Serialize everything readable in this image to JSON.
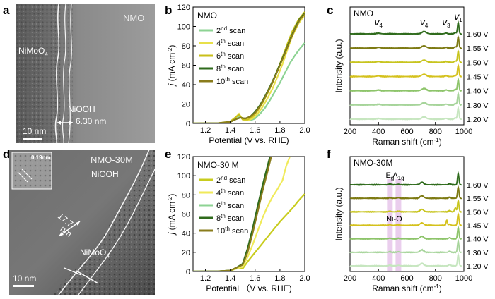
{
  "panel_letters": {
    "a": "a",
    "b": "b",
    "c": "c",
    "d": "d",
    "e": "e",
    "f": "f"
  },
  "panel_a": {
    "sample_label": "NMO",
    "phase_1": "NiMoO",
    "phase_1_sub": "4",
    "phase_2": "NiOOH",
    "thickness": "6.30 nm",
    "scale_bar": "10 nm"
  },
  "panel_d": {
    "sample_label": "NMO-30M",
    "inset_spacing": "0.19nm",
    "phase_1": "NiOOH",
    "phase_2": "NiMoO",
    "phase_2_sub": "4",
    "thickness_line1": "17.7",
    "thickness_line2": "nm",
    "scale_bar": "10 nm"
  },
  "chart_data": [
    {
      "id": "b",
      "type": "line",
      "title": "NMO",
      "xlabel": "Potential (V vs. RHE)",
      "ylabel_main": "j",
      "ylabel_unit": "(mA cm",
      "ylabel_sup": "-2",
      "ylabel_end": ")",
      "xlim": [
        1.1,
        2.0
      ],
      "ylim": [
        0,
        120
      ],
      "xticks": [
        "1.2",
        "1.4",
        "1.6",
        "1.8",
        "2.0"
      ],
      "xtick_values": [
        1.2,
        1.4,
        1.6,
        1.8,
        2.0
      ],
      "yticks": [
        "0",
        "20",
        "40",
        "60",
        "80",
        "100",
        "120"
      ],
      "ytick_values": [
        0,
        20,
        40,
        60,
        80,
        100,
        120
      ],
      "legend": "top-left",
      "series": [
        {
          "name": "2nd scan",
          "num": "2",
          "sup": "nd",
          "rest": " scan",
          "color": "#8dd393",
          "x": [
            1.1,
            1.3,
            1.4,
            1.44,
            1.48,
            1.52,
            1.56,
            1.6,
            1.64,
            1.68,
            1.72,
            1.76,
            1.8,
            1.84,
            1.88,
            1.92,
            1.96,
            2.0
          ],
          "y": [
            0,
            0.2,
            1.5,
            5,
            7,
            3,
            3,
            5,
            10,
            16,
            24,
            33,
            42,
            52,
            62,
            70,
            77,
            83
          ]
        },
        {
          "name": "4th scan",
          "num": "4",
          "sup": "th",
          "rest": " scan",
          "color": "#e8e04a",
          "x": [
            1.1,
            1.3,
            1.4,
            1.44,
            1.47,
            1.5,
            1.54,
            1.58,
            1.62,
            1.66,
            1.7,
            1.74,
            1.78,
            1.82,
            1.86,
            1.9,
            1.95,
            2.0
          ],
          "y": [
            0,
            0.2,
            2,
            6,
            10,
            4,
            3,
            5,
            10,
            17,
            26,
            36,
            48,
            61,
            76,
            90,
            103,
            112
          ]
        },
        {
          "name": "6th scan",
          "num": "6",
          "sup": "th",
          "rest": " scan",
          "color": "#c9bf1a",
          "x": [
            1.1,
            1.3,
            1.4,
            1.44,
            1.47,
            1.5,
            1.54,
            1.58,
            1.62,
            1.66,
            1.7,
            1.74,
            1.78,
            1.82,
            1.86,
            1.9,
            1.95,
            2.0
          ],
          "y": [
            0,
            0.2,
            2,
            6,
            9,
            4,
            4,
            7,
            13,
            21,
            31,
            42,
            55,
            68,
            82,
            95,
            107,
            115
          ]
        },
        {
          "name": "8th scan",
          "num": "8",
          "sup": "th",
          "rest": " scan",
          "color": "#2f6b1c",
          "x": [
            1.1,
            1.3,
            1.4,
            1.44,
            1.48,
            1.52,
            1.56,
            1.6,
            1.64,
            1.68,
            1.72,
            1.76,
            1.8,
            1.84,
            1.88,
            1.92,
            1.96,
            2.0
          ],
          "y": [
            0,
            0.2,
            1.5,
            4,
            6,
            5,
            7,
            12,
            19,
            28,
            38,
            49,
            61,
            73,
            86,
            98,
            108,
            114
          ]
        },
        {
          "name": "10th scan",
          "num": "10",
          "sup": "th",
          "rest": " scan",
          "color": "#8a7c1c",
          "x": [
            1.1,
            1.3,
            1.4,
            1.44,
            1.48,
            1.52,
            1.56,
            1.6,
            1.64,
            1.68,
            1.72,
            1.76,
            1.8,
            1.84,
            1.88,
            1.92,
            1.96,
            2.0
          ],
          "y": [
            0,
            0.2,
            1.5,
            4,
            6,
            5,
            7,
            11,
            18,
            27,
            37,
            48,
            60,
            72,
            85,
            97,
            107,
            113
          ]
        }
      ]
    },
    {
      "id": "c",
      "type": "line",
      "title": "NMO",
      "xlabel": "Raman shift (cm",
      "xlabel_sup": "-1",
      "xlabel_end": ")",
      "ylabel": "Intensity (a.u.)",
      "xlim": [
        200,
        1000
      ],
      "xticks": [
        "200",
        "400",
        "600",
        "800",
        "1000"
      ],
      "xtick_values": [
        200,
        400,
        600,
        800,
        1000
      ],
      "peak_labels": [
        {
          "sym": "v",
          "sub": "4",
          "x": 400
        },
        {
          "sym": "v",
          "sub": "4",
          "x": 720
        },
        {
          "sym": "v",
          "sub": "3",
          "x": 875
        },
        {
          "sym": "v",
          "sub": "1",
          "x": 960
        }
      ],
      "spectra": [
        {
          "label": "1.60 V",
          "color": "#2f6b1c"
        },
        {
          "label": "1.55 V",
          "color": "#7d7a12"
        },
        {
          "label": "1.50 V",
          "color": "#c7c41e"
        },
        {
          "label": "1.45 V",
          "color": "#d4c11c"
        },
        {
          "label": "1.40 V",
          "color": "#8dc46a"
        },
        {
          "label": "1.30 V",
          "color": "#a6d49a"
        },
        {
          "label": "1.20 V",
          "color": "#c6e6bf"
        }
      ]
    },
    {
      "id": "e",
      "type": "line",
      "title": "NMO-30 M",
      "xlabel": "Potential （V vs. RHE)",
      "ylabel_main": "j",
      "ylabel_unit": "(mA cm",
      "ylabel_sup": "-2",
      "ylabel_end": ")",
      "xlim": [
        1.1,
        2.0
      ],
      "ylim": [
        0,
        120
      ],
      "xticks": [
        "1.2",
        "1.4",
        "1.6",
        "1.8",
        "2.0"
      ],
      "xtick_values": [
        1.2,
        1.4,
        1.6,
        1.8,
        2.0
      ],
      "yticks": [
        "0",
        "20",
        "40",
        "60",
        "80",
        "100",
        "120"
      ],
      "ytick_values": [
        0,
        20,
        40,
        60,
        80,
        100,
        120
      ],
      "legend": "top-left",
      "series": [
        {
          "name": "2nd scan",
          "num": "2",
          "sup": "nd",
          "rest": " scan",
          "color": "#c8cc1e",
          "x": [
            1.1,
            1.3,
            1.4,
            1.45,
            1.5,
            1.55,
            1.6,
            1.65,
            1.7,
            1.75,
            1.8,
            1.85,
            1.9,
            1.95,
            2.0
          ],
          "y": [
            0,
            0.2,
            1,
            3,
            3,
            12,
            20,
            28,
            36,
            44,
            52,
            59,
            66,
            74,
            81
          ]
        },
        {
          "name": "4th scan",
          "num": "4",
          "sup": "th",
          "rest": " scan",
          "color": "#f0ea5a",
          "x": [
            1.1,
            1.3,
            1.4,
            1.45,
            1.5,
            1.54,
            1.58,
            1.62,
            1.66,
            1.7,
            1.74,
            1.78,
            1.82,
            1.85,
            1.88
          ],
          "y": [
            0,
            0.2,
            1,
            3,
            5,
            15,
            28,
            42,
            56,
            68,
            78,
            86,
            95,
            110,
            120
          ]
        },
        {
          "name": "6th scan",
          "num": "6",
          "sup": "th",
          "rest": " scan",
          "color": "#8dd393",
          "x": [
            1.1,
            1.3,
            1.4,
            1.45,
            1.5,
            1.54,
            1.58,
            1.62,
            1.66,
            1.7,
            1.73
          ],
          "y": [
            0,
            0.2,
            1,
            4,
            8,
            22,
            42,
            64,
            86,
            106,
            120
          ]
        },
        {
          "name": "8th scan",
          "num": "8",
          "sup": "th",
          "rest": " scan",
          "color": "#2f6b1c",
          "x": [
            1.1,
            1.3,
            1.4,
            1.45,
            1.5,
            1.54,
            1.58,
            1.62,
            1.66,
            1.7,
            1.72
          ],
          "y": [
            0,
            0.2,
            1,
            4,
            8,
            24,
            45,
            68,
            90,
            110,
            120
          ]
        },
        {
          "name": "10th scan",
          "num": "10",
          "sup": "th",
          "rest": " scan",
          "color": "#8a7c1c",
          "x": [
            1.1,
            1.3,
            1.4,
            1.45,
            1.5,
            1.54,
            1.58,
            1.62,
            1.66,
            1.7,
            1.73
          ],
          "y": [
            0,
            0.2,
            1,
            4,
            7,
            20,
            40,
            62,
            84,
            104,
            120
          ]
        }
      ]
    },
    {
      "id": "f",
      "type": "line",
      "title": "NMO-30M",
      "xlabel": "Raman shift (cm",
      "xlabel_sup": "-1",
      "xlabel_end": ")",
      "ylabel": "Intensity (a.u.)",
      "xlim": [
        200,
        1000
      ],
      "xticks": [
        "200",
        "400",
        "600",
        "800",
        "1000"
      ],
      "xtick_values": [
        200,
        400,
        600,
        800,
        1000
      ],
      "bands": [
        {
          "label": "E",
          "sub": "g",
          "x": 480
        },
        {
          "label": "A",
          "sub": "1g",
          "x": 540
        }
      ],
      "band_annotation": "Ni-O",
      "spectra": [
        {
          "label": "1.60 V",
          "color": "#2f6b1c"
        },
        {
          "label": "1.55 V",
          "color": "#7d7a12"
        },
        {
          "label": "1.50 V",
          "color": "#c7c41e"
        },
        {
          "label": "1.45 V",
          "color": "#d4c11c"
        },
        {
          "label": "1.40 V",
          "color": "#8dc46a"
        },
        {
          "label": "1.30 V",
          "color": "#a6d49a"
        },
        {
          "label": "1.20 V",
          "color": "#c6e6bf"
        }
      ]
    }
  ]
}
